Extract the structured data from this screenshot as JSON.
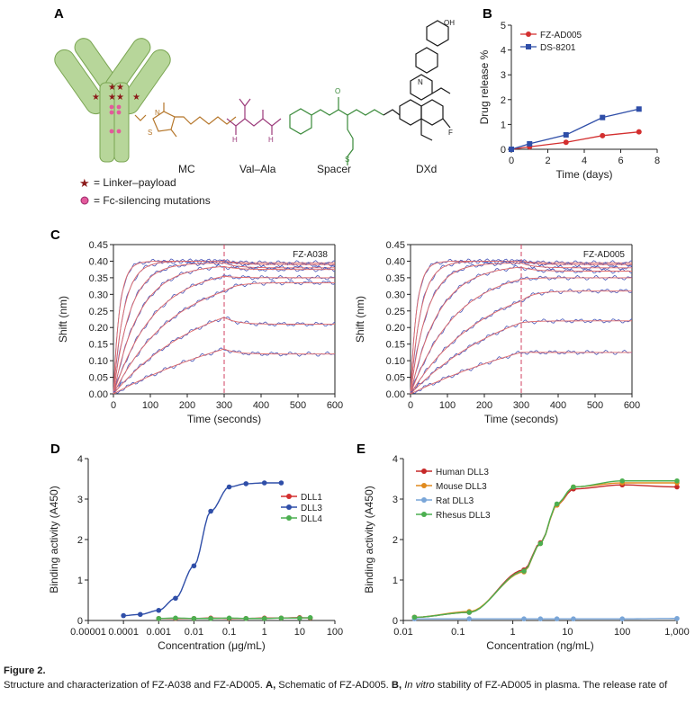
{
  "panel_labels": {
    "a": "A",
    "b": "B",
    "c": "C",
    "d": "D",
    "e": "E"
  },
  "panel_a": {
    "component_labels": [
      "MC",
      "Val–Ala",
      "Spacer",
      "DXd"
    ],
    "legend_linker_payload": "= Linker–payload",
    "legend_fc_silencing": "= Fc-silencing mutations",
    "chemistry_atoms": [
      "S",
      "N",
      "O",
      "H",
      "OH",
      "F"
    ],
    "colors": {
      "antibody": "#a3c97a",
      "antibody_dark": "#6f9a44",
      "star": "#8b1a1a",
      "mc": "#b5762a",
      "valala": "#9b3a7a",
      "spacer": "#3a8a3a",
      "dxd": "#1a1a1a"
    }
  },
  "chart_data": [
    {
      "panel": "B",
      "type": "line",
      "x": [
        0,
        1,
        3,
        5,
        7
      ],
      "xlabel": "Time (days)",
      "ylabel": "Drug release %",
      "xlim": [
        0,
        8
      ],
      "ylim": [
        0,
        5
      ],
      "xticks": [
        0,
        2,
        4,
        6,
        8
      ],
      "yticks": [
        0,
        1,
        2,
        3,
        4,
        5
      ],
      "legend_position": "top-left",
      "series": [
        {
          "name": "FZ-AD005",
          "color": "#d32f2f",
          "marker": "circle",
          "values": [
            0.0,
            0.1,
            0.28,
            0.55,
            0.7
          ]
        },
        {
          "name": "DS-8201",
          "color": "#2f4ea8",
          "marker": "square",
          "values": [
            0.0,
            0.22,
            0.58,
            1.28,
            1.62
          ]
        }
      ]
    },
    {
      "panel": "C-left",
      "type": "line",
      "annotation": "FZ-A038",
      "xlabel": "Time (seconds)",
      "ylabel": "Shift (nm)",
      "xlim": [
        0,
        600
      ],
      "ylim": [
        0,
        0.45
      ],
      "xticks": [
        0,
        100,
        200,
        300,
        400,
        500,
        600
      ],
      "xtick_labels": [
        "0",
        "100",
        "200",
        "300",
        "400",
        "500",
        "600"
      ],
      "yticks": [
        0,
        0.05,
        0.1,
        0.15,
        0.2,
        0.25,
        0.3,
        0.35,
        0.4,
        0.45
      ],
      "ytick_labels": [
        "0.00",
        "0.05",
        "0.10",
        "0.15",
        "0.20",
        "0.25",
        "0.30",
        "0.35",
        "0.40",
        "0.45"
      ],
      "dissociation_start": 300,
      "curve_colors": {
        "measured": "#4a56b8",
        "fit": "#e06a6a"
      },
      "curves": [
        {
          "plateau": 0.4,
          "kon": 0.06,
          "end": 0.395
        },
        {
          "plateau": 0.4,
          "kon": 0.035,
          "end": 0.39
        },
        {
          "plateau": 0.395,
          "kon": 0.022,
          "end": 0.38
        },
        {
          "plateau": 0.39,
          "kon": 0.014,
          "end": 0.375
        },
        {
          "plateau": 0.38,
          "kon": 0.009,
          "end": 0.35
        },
        {
          "plateau": 0.37,
          "kon": 0.006,
          "end": 0.335
        },
        {
          "plateau": 0.33,
          "kon": 0.004,
          "end": 0.21
        },
        {
          "plateau": 0.3,
          "kon": 0.002,
          "end": 0.12
        }
      ]
    },
    {
      "panel": "C-right",
      "type": "line",
      "annotation": "FZ-AD005",
      "xlabel": "Time (seconds)",
      "ylabel": "Shift (nm)",
      "xlim": [
        0,
        600
      ],
      "ylim": [
        0,
        0.45
      ],
      "xticks": [
        0,
        100,
        200,
        300,
        400,
        500,
        600
      ],
      "xtick_labels": [
        "0",
        "100",
        "200",
        "300",
        "400",
        "500",
        "600"
      ],
      "yticks": [
        0,
        0.05,
        0.1,
        0.15,
        0.2,
        0.25,
        0.3,
        0.35,
        0.4,
        0.45
      ],
      "ytick_labels": [
        "0.00",
        "0.05",
        "0.10",
        "0.15",
        "0.20",
        "0.25",
        "0.30",
        "0.35",
        "0.40",
        "0.45"
      ],
      "dissociation_start": 300,
      "curve_colors": {
        "measured": "#4a56b8",
        "fit": "#e06a6a"
      },
      "curves": [
        {
          "plateau": 0.4,
          "kon": 0.06,
          "end": 0.395
        },
        {
          "plateau": 0.4,
          "kon": 0.035,
          "end": 0.39
        },
        {
          "plateau": 0.395,
          "kon": 0.022,
          "end": 0.38
        },
        {
          "plateau": 0.39,
          "kon": 0.013,
          "end": 0.37
        },
        {
          "plateau": 0.38,
          "kon": 0.008,
          "end": 0.35
        },
        {
          "plateau": 0.36,
          "kon": 0.005,
          "end": 0.31
        },
        {
          "plateau": 0.33,
          "kon": 0.0035,
          "end": 0.22
        },
        {
          "plateau": 0.3,
          "kon": 0.0018,
          "end": 0.125
        }
      ]
    },
    {
      "panel": "D",
      "type": "scatter",
      "xlabel": "Concentration (μg/mL)",
      "ylabel": "Binding activity (A450)",
      "xscale": "log",
      "xlim": [
        1e-05,
        100
      ],
      "ylim": [
        0,
        4
      ],
      "xticks": [
        1e-05,
        0.0001,
        0.001,
        0.01,
        0.1,
        1,
        10,
        100
      ],
      "xtick_labels": [
        "0.00001",
        "0.0001",
        "0.001",
        "0.01",
        "0.1",
        "1",
        "10",
        "100"
      ],
      "yticks": [
        0,
        1,
        2,
        3,
        4
      ],
      "legend_position": "right",
      "series": [
        {
          "name": "DLL1",
          "color": "#d32f2f",
          "x": [
            0.001,
            0.003,
            0.01,
            0.03,
            0.1,
            0.3,
            1,
            3,
            10,
            20
          ],
          "values": [
            0.05,
            0.05,
            0.05,
            0.06,
            0.05,
            0.05,
            0.06,
            0.06,
            0.07,
            0.06
          ]
        },
        {
          "name": "DLL3",
          "color": "#2f4ea8",
          "x": [
            0.0001,
            0.0003,
            0.001,
            0.003,
            0.01,
            0.03,
            0.1,
            0.3,
            1,
            3
          ],
          "values": [
            0.12,
            0.15,
            0.25,
            0.55,
            1.35,
            2.7,
            3.3,
            3.38,
            3.4,
            3.4
          ]
        },
        {
          "name": "DLL4",
          "color": "#4caf50",
          "x": [
            0.001,
            0.003,
            0.01,
            0.03,
            0.1,
            0.3,
            1,
            3,
            10,
            20
          ],
          "values": [
            0.05,
            0.06,
            0.05,
            0.05,
            0.06,
            0.05,
            0.05,
            0.06,
            0.06,
            0.07
          ]
        }
      ]
    },
    {
      "panel": "E",
      "type": "scatter",
      "xlabel": "Concentration (ng/mL)",
      "ylabel": "Binding activity (A450)",
      "xscale": "log",
      "xlim": [
        0.01,
        1000
      ],
      "ylim": [
        0,
        4
      ],
      "xticks": [
        0.01,
        0.1,
        1,
        10,
        100,
        1000
      ],
      "xtick_labels": [
        "0.01",
        "0.1",
        "1",
        "10",
        "100",
        "1,000"
      ],
      "yticks": [
        0,
        1,
        2,
        3,
        4
      ],
      "legend_position": "top-left",
      "series": [
        {
          "name": "Human DLL3",
          "color": "#c62828",
          "x": [
            0.016,
            0.16,
            1.6,
            3.2,
            6.4,
            12.8,
            100,
            1000
          ],
          "values": [
            0.08,
            0.2,
            1.25,
            1.92,
            2.85,
            3.25,
            3.35,
            3.3
          ]
        },
        {
          "name": "Mouse DLL3",
          "color": "#e08a1e",
          "x": [
            0.016,
            0.16,
            1.6,
            3.2,
            6.4,
            12.8,
            100,
            1000
          ],
          "values": [
            0.08,
            0.22,
            1.2,
            1.9,
            2.85,
            3.3,
            3.4,
            3.4
          ]
        },
        {
          "name": "Rat DLL3",
          "color": "#7aa6d8",
          "x": [
            0.016,
            0.16,
            1.6,
            3.2,
            6.4,
            12.8,
            100,
            1000
          ],
          "values": [
            0.04,
            0.04,
            0.04,
            0.04,
            0.04,
            0.04,
            0.04,
            0.05
          ]
        },
        {
          "name": "Rhesus DLL3",
          "color": "#4caf50",
          "x": [
            0.016,
            0.16,
            1.6,
            3.2,
            6.4,
            12.8,
            100,
            1000
          ],
          "values": [
            0.08,
            0.2,
            1.22,
            1.9,
            2.88,
            3.3,
            3.45,
            3.45
          ]
        }
      ]
    }
  ],
  "caption": {
    "figure_label": "Figure 2.",
    "text_1": "Structure and characterization of FZ-A038 and FZ-AD005. ",
    "a_label": "A,",
    "text_2": " Schematic of FZ-AD005. ",
    "b_label": "B,",
    "text_3_italic": " In vitro",
    "text_4": " stability of FZ-AD005 in plasma. The release rate of"
  }
}
